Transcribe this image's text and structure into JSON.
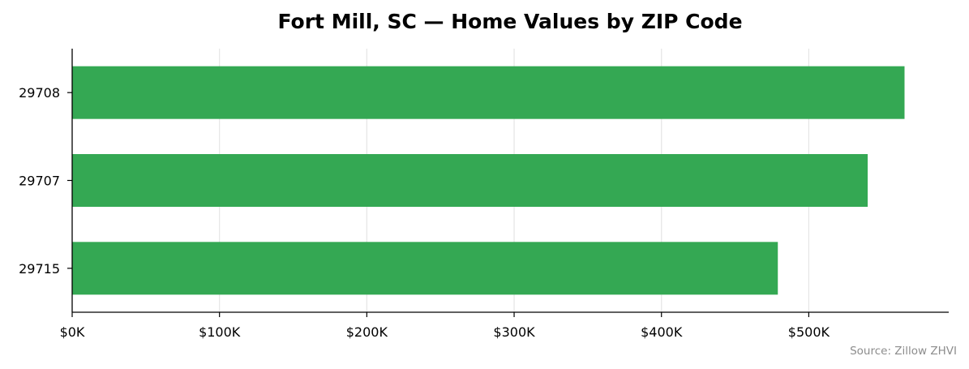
{
  "chart_data": {
    "type": "bar",
    "orientation": "horizontal",
    "title": "Fort Mill, SC — Home Values by ZIP Code",
    "categories": [
      "29708",
      "29707",
      "29715"
    ],
    "values": [
      565000,
      540000,
      479000
    ],
    "xlabel": "",
    "ylabel": "",
    "xlim": [
      0,
      595000
    ],
    "x_ticks": [
      0,
      100000,
      200000,
      300000,
      400000,
      500000
    ],
    "x_tick_labels": [
      "$0K",
      "$100K",
      "$200K",
      "$300K",
      "$400K",
      "$500K"
    ],
    "grid": "vertical",
    "bar_color": "#34a853",
    "source": "Source: Zillow ZHVI"
  }
}
